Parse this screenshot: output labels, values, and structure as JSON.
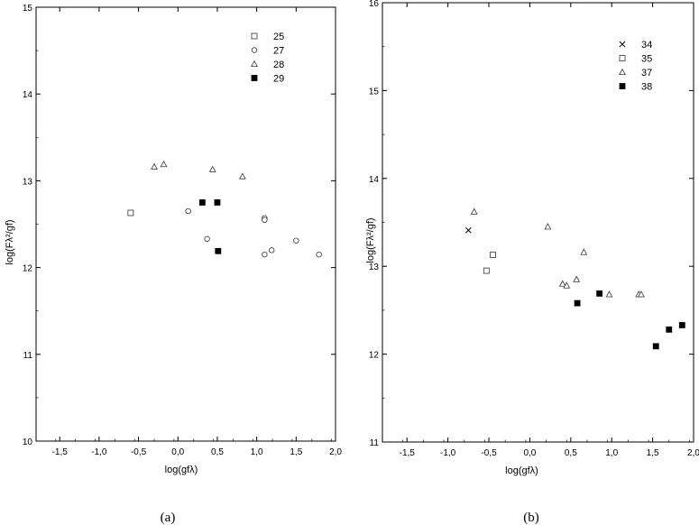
{
  "chart_data": [
    {
      "panel": "(a)",
      "type": "scatter",
      "xlabel": "log(gfλ)",
      "ylabel": "log(Fλ²/gf)",
      "xlim": [
        -1.8,
        2.0
      ],
      "ylim": [
        10,
        15
      ],
      "xticks": [
        -1.5,
        -1.0,
        -0.5,
        0.0,
        0.5,
        1.0,
        1.5,
        2.0
      ],
      "xtick_labels": [
        "-1,5",
        "-1,0",
        "-0,5",
        "0,0",
        "0,5",
        "1,0",
        "1,5",
        "2,0"
      ],
      "yticks": [
        10,
        11,
        12,
        13,
        14,
        15
      ],
      "ytick_labels": [
        "10",
        "11",
        "12",
        "13",
        "14",
        "15"
      ],
      "legend_position": "top-right",
      "series": [
        {
          "name": "25",
          "marker": "square-open",
          "points": [
            [
              -0.6,
              12.63
            ]
          ]
        },
        {
          "name": "27",
          "marker": "circle-open",
          "points": [
            [
              0.13,
              12.65
            ],
            [
              0.37,
              12.33
            ],
            [
              1.1,
              12.57
            ],
            [
              1.1,
              12.55
            ],
            [
              1.1,
              12.15
            ],
            [
              1.19,
              12.2
            ],
            [
              1.5,
              12.31
            ],
            [
              1.79,
              12.15
            ]
          ]
        },
        {
          "name": "28",
          "marker": "triangle-open",
          "points": [
            [
              -0.3,
              13.16
            ],
            [
              -0.18,
              13.19
            ],
            [
              0.44,
              13.13
            ],
            [
              0.82,
              13.05
            ]
          ]
        },
        {
          "name": "29",
          "marker": "square-filled",
          "points": [
            [
              0.31,
              12.75
            ],
            [
              0.5,
              12.75
            ],
            [
              0.51,
              12.19
            ]
          ]
        }
      ]
    },
    {
      "panel": "(b)",
      "type": "scatter",
      "xlabel": "log(gfλ)",
      "ylabel": "log(Fλ²/gf)",
      "xlim": [
        -1.8,
        2.0
      ],
      "ylim": [
        11,
        16
      ],
      "xticks": [
        -1.5,
        -1.0,
        -0.5,
        0.0,
        0.5,
        1.0,
        1.5,
        2.0
      ],
      "xtick_labels": [
        "-1,5",
        "-1,0",
        "-0,5",
        "0,0",
        "0,5",
        "1,0",
        "1,5",
        "2,0"
      ],
      "yticks": [
        11,
        12,
        13,
        14,
        15,
        16
      ],
      "ytick_labels": [
        "11",
        "12",
        "13",
        "14",
        "15",
        "16"
      ],
      "legend_position": "top-right",
      "series": [
        {
          "name": "34",
          "marker": "cross",
          "points": [
            [
              -0.75,
              13.41
            ]
          ]
        },
        {
          "name": "35",
          "marker": "square-open",
          "points": [
            [
              -0.53,
              12.95
            ],
            [
              -0.45,
              13.13
            ]
          ]
        },
        {
          "name": "37",
          "marker": "triangle-open",
          "points": [
            [
              -0.68,
              13.62
            ],
            [
              0.22,
              13.45
            ],
            [
              0.4,
              12.8
            ],
            [
              0.45,
              12.78
            ],
            [
              0.57,
              12.85
            ],
            [
              0.66,
              13.16
            ],
            [
              0.97,
              12.68
            ],
            [
              1.33,
              12.68
            ],
            [
              1.36,
              12.68
            ]
          ]
        },
        {
          "name": "38",
          "marker": "square-filled",
          "points": [
            [
              0.58,
              12.58
            ],
            [
              0.85,
              12.69
            ],
            [
              1.54,
              12.09
            ],
            [
              1.7,
              12.28
            ],
            [
              1.86,
              12.33
            ]
          ]
        }
      ]
    }
  ],
  "captions": [
    "(a)",
    "(b)"
  ]
}
